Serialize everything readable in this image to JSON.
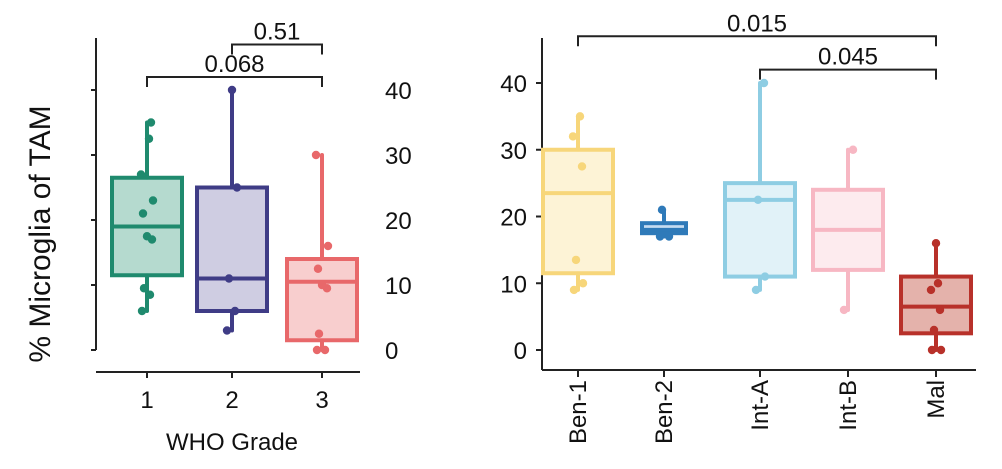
{
  "chart_data": [
    {
      "type": "box",
      "title": "",
      "ylabel": "% Microglia of TAM",
      "xlabel": "WHO Grade",
      "ylim": [
        0,
        45
      ],
      "yticks": [
        0,
        10,
        20,
        30,
        40
      ],
      "categories": [
        "1",
        "2",
        "3"
      ],
      "boxes": [
        {
          "category": "1",
          "color": "#1f8a6e",
          "fill": "#a8d4c7",
          "min": 6,
          "q1": 11.5,
          "median": 19,
          "q3": 26.5,
          "max": 35,
          "points": [
            6,
            8.5,
            9.5,
            17,
            17.5,
            21,
            23,
            27,
            32.5,
            35
          ]
        },
        {
          "category": "2",
          "color": "#3f3c86",
          "fill": "#c7c4dd",
          "min": 3,
          "q1": 6,
          "median": 11,
          "q3": 25,
          "max": 40,
          "points": [
            3,
            6,
            11,
            25,
            40
          ]
        },
        {
          "category": "3",
          "color": "#e8686a",
          "fill": "#f7c6c6",
          "min": 0,
          "q1": 1.5,
          "median": 10.5,
          "q3": 14,
          "max": 30,
          "points": [
            0,
            0,
            2.5,
            9.5,
            10,
            12.5,
            16,
            30
          ]
        }
      ],
      "annotations": [
        {
          "text": "0.51",
          "from": "2",
          "to": "3",
          "level": 47
        },
        {
          "text": "0.068",
          "from": "1",
          "to": "3",
          "level": 42
        }
      ]
    },
    {
      "type": "box",
      "title": "",
      "ylabel": "",
      "xlabel": "",
      "ylim": [
        0,
        45
      ],
      "yticks": [
        0,
        10,
        20,
        30,
        40
      ],
      "categories": [
        "Ben-1",
        "Ben-2",
        "Int-A",
        "Int-B",
        "Mal"
      ],
      "boxes": [
        {
          "category": "Ben-1",
          "color": "#f7d67a",
          "fill": "#fdf1cf",
          "min": 9,
          "q1": 11.5,
          "median": 23.5,
          "q3": 30,
          "max": 35,
          "points": [
            9,
            10,
            13.5,
            27.5,
            32,
            35
          ]
        },
        {
          "category": "Ben-2",
          "color": "#2f7ab9",
          "fill": "#bcd6ee",
          "min": 17,
          "q1": 17.5,
          "median": 18,
          "q3": 19,
          "max": 21,
          "points": [
            17,
            17,
            21
          ]
        },
        {
          "category": "Int-A",
          "color": "#8ecde3",
          "fill": "#dcf0f7",
          "min": 9,
          "q1": 11,
          "median": 22.5,
          "q3": 25,
          "max": 40,
          "points": [
            9,
            11,
            22.5,
            40
          ]
        },
        {
          "category": "Int-B",
          "color": "#f7b7c3",
          "fill": "#fde7eb",
          "min": 6,
          "q1": 12,
          "median": 18,
          "q3": 24,
          "max": 30,
          "points": [
            6,
            30
          ]
        },
        {
          "category": "Mal",
          "color": "#b8312a",
          "fill": "#dfa59c",
          "min": 0,
          "q1": 2.5,
          "median": 6.5,
          "q3": 11,
          "max": 16,
          "points": [
            0,
            0,
            3,
            6,
            9,
            10,
            16
          ]
        }
      ],
      "annotations": [
        {
          "text": "0.015",
          "from": "Ben-1",
          "to": "Mal",
          "level": 47
        },
        {
          "text": "0.045",
          "from": "Int-A",
          "to": "Mal",
          "level": 42
        }
      ]
    }
  ]
}
